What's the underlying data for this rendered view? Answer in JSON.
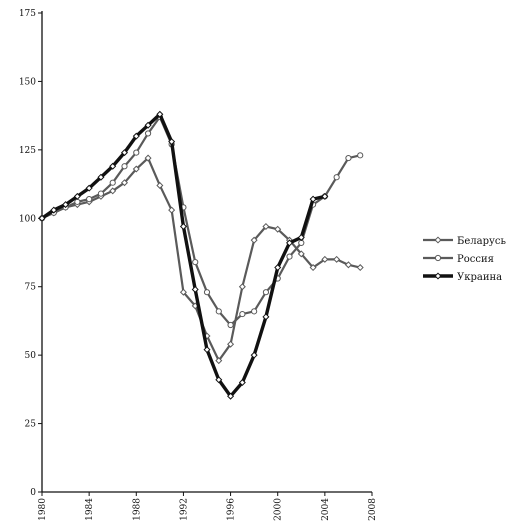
{
  "chart_data": {
    "type": "line",
    "title": "",
    "xlabel": "",
    "ylabel": "",
    "xlim": [
      1980,
      2008
    ],
    "ylim": [
      0,
      175
    ],
    "yticks": [
      "0",
      "25",
      "50",
      "75",
      "100",
      "125",
      "150",
      "175"
    ],
    "xticks": [
      "1980",
      "1984",
      "1988",
      "1992",
      "1996",
      "2000",
      "2004",
      "2008"
    ],
    "legend_position": "right",
    "grid": false,
    "series": [
      {
        "name": "Беларусь",
        "color": "#5a5a5a",
        "marker": "diamond",
        "x": [
          1980,
          1981,
          1982,
          1983,
          1984,
          1985,
          1986,
          1987,
          1988,
          1989,
          1990,
          1991,
          1992,
          1993,
          1994,
          1995,
          1996,
          1997,
          1998,
          1999,
          2000,
          2001,
          2002,
          2003,
          2004,
          2005,
          2006,
          2007
        ],
        "y": [
          100,
          102,
          104,
          105,
          106,
          108,
          110,
          113,
          118,
          122,
          112,
          103,
          73,
          68,
          57,
          48,
          54,
          75,
          92,
          97,
          96,
          92,
          87,
          82,
          85,
          85,
          83,
          82
        ]
      },
      {
        "name": "Россия",
        "color": "#5a5a5a",
        "marker": "circle",
        "x": [
          1980,
          1981,
          1982,
          1983,
          1984,
          1985,
          1986,
          1987,
          1988,
          1989,
          1990,
          1991,
          1992,
          1993,
          1994,
          1995,
          1996,
          1997,
          1998,
          1999,
          2000,
          2001,
          2002,
          2003,
          2004,
          2005,
          2006,
          2007
        ],
        "y": [
          100,
          102,
          104,
          106,
          107,
          109,
          113,
          119,
          124,
          131,
          137,
          127,
          104,
          84,
          73,
          66,
          61,
          65,
          66,
          73,
          78,
          86,
          91,
          105,
          108,
          115,
          122,
          123
        ]
      },
      {
        "name": "Украина",
        "color": "#111111",
        "marker": "diamond",
        "x": [
          1980,
          1981,
          1982,
          1983,
          1984,
          1985,
          1986,
          1987,
          1988,
          1989,
          1990,
          1991,
          1992,
          1993,
          1994,
          1995,
          1996,
          1997,
          1998,
          1999,
          2000,
          2001,
          2002,
          2003,
          2004
        ],
        "y": [
          100,
          103,
          105,
          108,
          111,
          115,
          119,
          124,
          130,
          134,
          138,
          128,
          97,
          74,
          52,
          41,
          35,
          40,
          50,
          64,
          82,
          91,
          93,
          107,
          108
        ]
      }
    ]
  }
}
